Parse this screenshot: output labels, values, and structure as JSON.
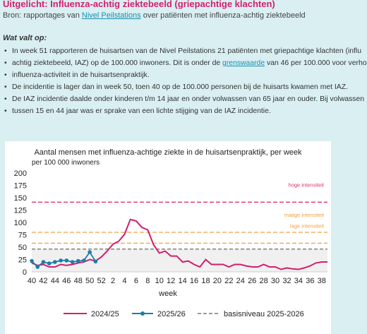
{
  "header": {
    "title": "Uitgelicht: Influenza-achtig ziektebeeld (griepachtige klachten)",
    "source_prefix": "Bron: rapportages van ",
    "source_link": "Nivel Peilstations",
    "source_suffix": " over patiënten met influenza-achtig ziektebeeld"
  },
  "section_title": "Wat valt op:",
  "bullets": [
    {
      "lines": [
        "In week 51 rapporteren de huisartsen van de Nivel Peilstations 21 patiënten met griepachtige klachten (influ"
      ]
    },
    {
      "lines": [
        "achtig ziektebeeld, IAZ) op de 100.000 inwoners. Dit is onder de ",
        "grenswaarde",
        " van 46 per 100.000 voor verho"
      ]
    },
    {
      "lines": [
        "influenza-activiteit in de huisartsenpraktijk."
      ]
    },
    {
      "lines": [
        "De incidentie is lager dan in week 50, toen 40 op de 100.000 personen bij de huisarts kwamen met IAZ."
      ]
    },
    {
      "lines": [
        "De IAZ incidentie daalde onder kinderen t/m 14 jaar en onder volwassen van 65 jaar en ouder. Bij volwassen"
      ]
    },
    {
      "lines": [
        "tussen 15 en 44 jaar was er sprake van een lichte stijging van de IAZ incidentie."
      ]
    }
  ],
  "chart_data": {
    "type": "line",
    "title": "Aantal mensen met influenza-achtige ziekte in de huisartsenpraktijk, per week",
    "ylabel": "per 100 000 inwoners",
    "xlabel": "week",
    "ylim": [
      0,
      200
    ],
    "yticks": [
      0,
      25,
      50,
      75,
      100,
      125,
      150,
      175,
      200
    ],
    "xticks": [
      "40",
      "42",
      "44",
      "46",
      "48",
      "50",
      "52",
      "2",
      "4",
      "6",
      "8",
      "10",
      "12",
      "14",
      "16",
      "18",
      "20",
      "22",
      "24",
      "26",
      "28",
      "30",
      "32",
      "34",
      "36",
      "38"
    ],
    "thresholds": [
      {
        "label": "hoge intensiteit",
        "value": 141,
        "color": "#e0336f"
      },
      {
        "label": "matige intensiteit",
        "value": 80,
        "color": "#f0a040"
      },
      {
        "label": "lage intensiteit",
        "value": 58,
        "color": "#f0a040"
      },
      {
        "label": "basisniveau 2025-2026",
        "value": 46,
        "color": "#999999"
      }
    ],
    "series": [
      {
        "name": "2024/25",
        "color": "#d21e6e",
        "weeks": [
          "40",
          "41",
          "42",
          "43",
          "44",
          "45",
          "46",
          "47",
          "48",
          "49",
          "50",
          "51",
          "52",
          "1",
          "2",
          "3",
          "4",
          "5",
          "6",
          "7",
          "8",
          "9",
          "10",
          "11",
          "12",
          "13",
          "14",
          "15",
          "16",
          "17",
          "18",
          "19",
          "20",
          "21",
          "22",
          "23",
          "24",
          "25",
          "26",
          "27",
          "28",
          "29",
          "30",
          "31",
          "32",
          "33",
          "34",
          "35",
          "36",
          "37",
          "38",
          "39"
        ],
        "values": [
          18,
          13,
          15,
          10,
          10,
          15,
          13,
          15,
          18,
          20,
          25,
          22,
          30,
          42,
          56,
          62,
          76,
          106,
          103,
          90,
          85,
          55,
          38,
          42,
          32,
          32,
          20,
          22,
          15,
          10,
          25,
          15,
          15,
          15,
          10,
          15,
          15,
          12,
          10,
          10,
          15,
          10,
          10,
          5,
          8,
          6,
          5,
          8,
          12,
          18,
          20,
          20
        ]
      },
      {
        "name": "2025/26",
        "color": "#1a7fa6",
        "weeks": [
          "40",
          "41",
          "42",
          "43",
          "44",
          "45",
          "46",
          "47",
          "48",
          "49",
          "50",
          "51"
        ],
        "values": [
          22,
          10,
          20,
          17,
          20,
          23,
          23,
          20,
          22,
          23,
          40,
          21
        ]
      }
    ],
    "baseline_color": "#999999",
    "legend": [
      "2024/25",
      "2025/26",
      "basisniveau 2025-2026"
    ],
    "legend_position": "bottom",
    "grid": false
  }
}
